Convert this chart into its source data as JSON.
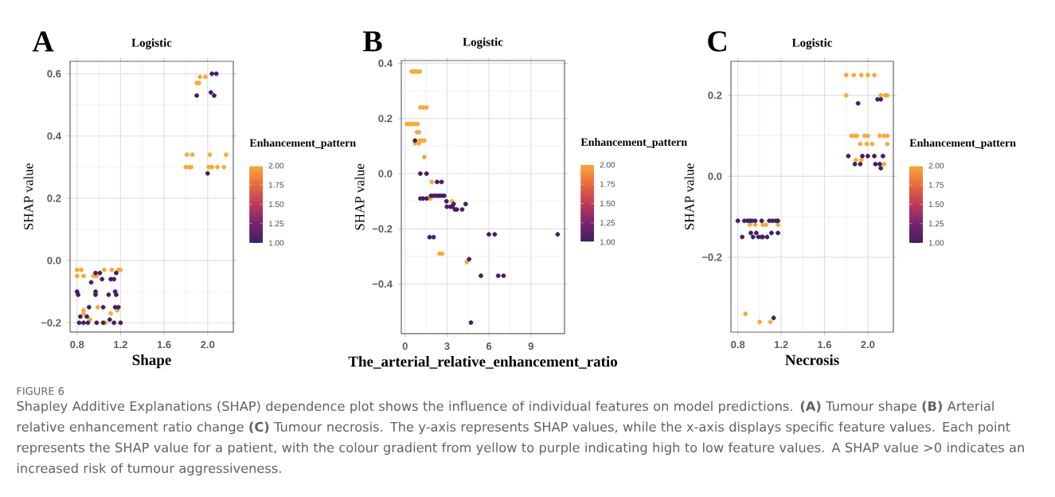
{
  "chart_data": [
    {
      "type": "scatter",
      "title": "Logistic",
      "xlabel": "Shape",
      "ylabel": "SHAP value",
      "clabel": "Enhancement_pattern",
      "annotations": [
        "A",
        "FIGURE 6",
        "Shapley Additive Explanations (SHAP) dependence plot shows the influence of individual features on model predictions. **(A)** Tumour shape **(B)** Arterial relative enhancement ratio change **(C)** Tumour necrosis. The y-axis represents SHAP values, while the x-axis displays specific feature values. Each point represents the SHAP value for a patient, with the colour gradient from yellow to purple indicating high to low feature values. A SHAP value >0 indicates an increased risk of tumour aggressiveness."
      ],
      "x": [
        1.9,
        1.92,
        1.93,
        1.98,
        1.81,
        1.86,
        1.8,
        1.83,
        1.85,
        2.02,
        2.17,
        2.01,
        2.04,
        2.09,
        2.15,
        0.8,
        0.84,
        0.8,
        0.86,
        0.95,
        0.98,
        1.05,
        1.12,
        1.18,
        1.2,
        0.86,
        0.86,
        0.99,
        1.11,
        1.17,
        0.92,
        1.06,
        1.9,
        2.04,
        2.08,
        2.03,
        2.06,
        2.0,
        0.8,
        0.81,
        0.83,
        0.82,
        0.86,
        0.89,
        0.9,
        0.91,
        0.93,
        0.97,
        1.01,
        0.97,
        0.97,
        0.98,
        1.03,
        1.04,
        1.04,
        1.09,
        1.11,
        1.14,
        1.14,
        1.16,
        1.15,
        1.16,
        1.15,
        1.18,
        1.2,
        1.1
      ],
      "values": [
        0.57,
        0.57,
        0.59,
        0.59,
        0.34,
        0.34,
        0.3,
        0.3,
        0.3,
        0.34,
        0.34,
        0.3,
        0.3,
        0.3,
        0.3,
        -0.03,
        -0.03,
        -0.05,
        -0.05,
        -0.05,
        -0.05,
        -0.03,
        -0.03,
        -0.03,
        -0.03,
        -0.16,
        -0.17,
        -0.15,
        -0.17,
        -0.16,
        -0.19,
        -0.2,
        0.53,
        0.6,
        0.6,
        0.54,
        0.53,
        0.28,
        -0.1,
        -0.11,
        -0.18,
        -0.2,
        -0.2,
        -0.18,
        -0.2,
        -0.15,
        -0.07,
        -0.04,
        -0.04,
        -0.1,
        -0.11,
        -0.2,
        -0.06,
        -0.15,
        -0.2,
        -0.11,
        -0.06,
        -0.2,
        -0.06,
        -0.04,
        -0.1,
        -0.11,
        -0.15,
        -0.15,
        -0.2,
        -0.19
      ],
      "cvalues": [
        2,
        2,
        2,
        2,
        2,
        2,
        2,
        2,
        2,
        2,
        2,
        2,
        2,
        2,
        2,
        2,
        2,
        2,
        2,
        2,
        2,
        2,
        2,
        2,
        2,
        2,
        2,
        2,
        2,
        2,
        2,
        2,
        1,
        1,
        1,
        1,
        1,
        1,
        1,
        1,
        1,
        1,
        1,
        1,
        1,
        1,
        1,
        1,
        1,
        1,
        1,
        1,
        1,
        1,
        1,
        1,
        1,
        1,
        1,
        1,
        1,
        1,
        1,
        1,
        1,
        1
      ],
      "xlim": [
        0.736,
        2.236
      ],
      "ylim": [
        -0.23,
        0.64
      ],
      "xticks": [
        0.8,
        1.2,
        1.6,
        {
          "value": 2.0,
          "label": "2.0"
        }
      ],
      "yticks": [
        {
          "value": -0.2,
          "label": "−0.2"
        },
        {
          "value": 0.0,
          "label": "0.0"
        },
        0.2,
        0.4,
        0.6
      ],
      "clim": [
        1,
        2
      ],
      "cticks": [
        {
          "value": 1,
          "label": "1.00"
        },
        {
          "value": 1.25,
          "label": "1.25"
        },
        {
          "value": 1.5,
          "label": "1.50"
        },
        {
          "value": 1.75,
          "label": "1.75"
        },
        {
          "value": 2,
          "label": "2.00"
        }
      ],
      "grid": true,
      "marker": "circle"
    },
    {
      "type": "scatter",
      "title": "Logistic",
      "xlabel": "The_arterial_relative_enhancement_ratio",
      "ylabel": "SHAP value",
      "clabel": "Enhancement_pattern",
      "annotations": [
        "B"
      ],
      "x": [
        0.46,
        0.61,
        0.76,
        0.92,
        1.05,
        0.13,
        0.29,
        0.42,
        0.57,
        0.71,
        0.9,
        1.09,
        1.28,
        1.53,
        0.84,
        0.99,
        1.05,
        1.22,
        1.37,
        0.72,
        0.99,
        1.37,
        1.91,
        1.68,
        1.81,
        3.36,
        2.46,
        2.65,
        4.42,
        0.71,
        1.09,
        1.53,
        1.09,
        1.28,
        1.53,
        1.85,
        2.04,
        2.23,
        2.42,
        2.61,
        2.8,
        2.29,
        2.61,
        2.96,
        2.99,
        3.24,
        3.38,
        3.47,
        3.57,
        3.7,
        4.08,
        4.33,
        1.75,
        2.04,
        4.58,
        4.71,
        5.42,
        5.99,
        6.41,
        6.66,
        7.04,
        10.91
      ],
      "values": [
        0.37,
        0.37,
        0.37,
        0.37,
        0.37,
        0.18,
        0.18,
        0.18,
        0.18,
        0.18,
        0.18,
        0.24,
        0.24,
        0.24,
        0.15,
        0.15,
        0.12,
        0.12,
        0.12,
        0.11,
        0.11,
        0.06,
        -0.03,
        -0.09,
        -0.09,
        -0.1,
        -0.29,
        -0.29,
        -0.32,
        0.12,
        0.0,
        0.0,
        -0.09,
        -0.09,
        -0.09,
        -0.08,
        -0.08,
        -0.08,
        -0.08,
        -0.08,
        -0.08,
        -0.03,
        -0.03,
        -0.1,
        -0.12,
        -0.12,
        -0.12,
        -0.11,
        -0.13,
        -0.13,
        -0.13,
        -0.11,
        -0.23,
        -0.23,
        -0.31,
        -0.54,
        -0.37,
        -0.22,
        -0.22,
        -0.37,
        -0.37,
        -0.22
      ],
      "cvalues": [
        2,
        2,
        2,
        2,
        2,
        2,
        2,
        2,
        2,
        2,
        2,
        2,
        2,
        2,
        2,
        2,
        2,
        2,
        2,
        2,
        2,
        2,
        2,
        2,
        2,
        2,
        2,
        2,
        2,
        1,
        1,
        1,
        1,
        1,
        1,
        1,
        1,
        1,
        1,
        1,
        1,
        1,
        1,
        1,
        1,
        1,
        1,
        1,
        1,
        1,
        1,
        1,
        1,
        1,
        1,
        1,
        1,
        1,
        1,
        1,
        1,
        1
      ],
      "xlim": [
        -0.27,
        11.4
      ],
      "ylim": [
        -0.58,
        0.41
      ],
      "xticks": [
        0,
        3,
        6,
        9
      ],
      "yticks": [
        {
          "value": -0.4,
          "label": "−0.4"
        },
        {
          "value": -0.2,
          "label": "−0.2"
        },
        {
          "value": 0.0,
          "label": "0.0"
        },
        0.2,
        0.4
      ],
      "clim": [
        1,
        2
      ],
      "cticks": [
        {
          "value": 1,
          "label": "1.00"
        },
        {
          "value": 1.25,
          "label": "1.25"
        },
        {
          "value": 1.5,
          "label": "1.50"
        },
        {
          "value": 1.75,
          "label": "1.75"
        },
        {
          "value": 2,
          "label": "2.00"
        }
      ],
      "grid": true,
      "marker": "circle"
    },
    {
      "type": "scatter",
      "title": "Logistic",
      "xlabel": "Necrosis",
      "ylabel": "SHAP value",
      "clabel": "Enhancement_pattern",
      "annotations": [
        "C"
      ],
      "x": [
        1.8,
        1.87,
        1.94,
        2.0,
        2.06,
        1.8,
        2.12,
        2.16,
        2.18,
        1.85,
        1.88,
        1.9,
        1.97,
        2.0,
        2.11,
        2.15,
        2.18,
        1.93,
        1.99,
        2.04,
        2.18,
        1.89,
        1.94,
        2.15,
        0.91,
        0.96,
        1.03,
        1.06,
        1.17,
        0.87,
        1.0,
        1.1,
        1.82,
        1.91,
        1.95,
        2.0,
        2.06,
        2.09,
        2.12,
        2.14,
        1.88,
        1.93,
        2.07,
        2.11,
        2.12,
        0.8,
        0.86,
        0.89,
        0.91,
        0.93,
        0.96,
        1.02,
        1.09,
        1.12,
        1.15,
        1.17,
        0.84,
        0.92,
        0.97,
        1.11,
        1.17,
        0.94,
        0.99,
        1.02,
        1.03,
        1.07,
        1.13
      ],
      "values": [
        0.25,
        0.25,
        0.25,
        0.25,
        0.25,
        0.2,
        0.2,
        0.2,
        0.2,
        0.1,
        0.1,
        0.1,
        0.1,
        0.1,
        0.1,
        0.1,
        0.1,
        0.08,
        0.08,
        0.08,
        0.08,
        0.04,
        0.04,
        0.03,
        -0.12,
        -0.12,
        -0.12,
        -0.12,
        -0.12,
        -0.34,
        -0.36,
        -0.36,
        0.05,
        0.18,
        0.05,
        0.05,
        0.05,
        0.19,
        0.19,
        0.05,
        0.03,
        0.03,
        0.03,
        0.03,
        0.02,
        -0.11,
        -0.11,
        -0.11,
        -0.11,
        -0.11,
        -0.11,
        -0.11,
        -0.11,
        -0.11,
        -0.11,
        -0.11,
        -0.15,
        -0.14,
        -0.14,
        -0.14,
        -0.14,
        -0.15,
        -0.15,
        -0.15,
        -0.15,
        -0.15,
        -0.35
      ],
      "cvalues": [
        2,
        2,
        2,
        2,
        2,
        2,
        2,
        2,
        2,
        2,
        2,
        2,
        2,
        2,
        2,
        2,
        2,
        2,
        2,
        2,
        2,
        2,
        2,
        2,
        2,
        2,
        2,
        2,
        2,
        2,
        2,
        2,
        1,
        1,
        1,
        1,
        1,
        1,
        1,
        1,
        1,
        1,
        1,
        1,
        1,
        1,
        1,
        1,
        1,
        1,
        1,
        1,
        1,
        1,
        1,
        1,
        1,
        1,
        1,
        1,
        1,
        1,
        1,
        1,
        1,
        1,
        1
      ],
      "xlim": [
        0.736,
        2.236
      ],
      "ylim": [
        -0.385,
        0.284
      ],
      "xticks": [
        0.8,
        1.2,
        1.6,
        {
          "value": 2.0,
          "label": "2.0"
        }
      ],
      "yticks": [
        {
          "value": -0.2,
          "label": "−0.2"
        },
        {
          "value": 0.0,
          "label": "0.0"
        },
        0.2
      ],
      "clim": [
        1,
        2
      ],
      "cticks": [
        {
          "value": 1,
          "label": "1.00"
        },
        {
          "value": 1.25,
          "label": "1.25"
        },
        {
          "value": 1.5,
          "label": "1.50"
        },
        {
          "value": 1.75,
          "label": "1.75"
        },
        {
          "value": 2,
          "label": "2.00"
        }
      ],
      "grid": true,
      "marker": "circle"
    }
  ]
}
